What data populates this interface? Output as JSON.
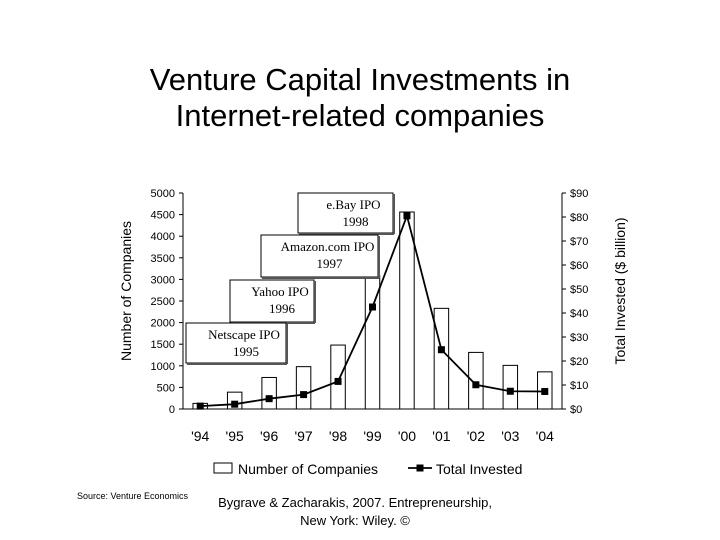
{
  "chart_data": {
    "type": "bar+line",
    "title": [
      "Venture Capital Investments in",
      "Internet-related companies"
    ],
    "xlabel": "",
    "ylabel_left": "Number of Companies",
    "ylabel_right": "Total Invested ($ billion)",
    "categories": [
      "'94",
      "'95",
      "'96",
      "'97",
      "'98",
      "'99",
      "'00",
      "'01",
      "'02",
      "'03",
      "'04"
    ],
    "left_axis": {
      "min": 0,
      "max": 5000,
      "ticks": [
        0,
        500,
        1000,
        1500,
        2000,
        2500,
        3000,
        3500,
        4000,
        4500,
        5000
      ]
    },
    "right_axis": {
      "min": 0,
      "max": 90,
      "ticks": [
        "$0",
        "$10",
        "$20",
        "$30",
        "$40",
        "$50",
        "$60",
        "$70",
        "$80",
        "$90"
      ]
    },
    "series": [
      {
        "name": "Number of Companies",
        "type": "bar",
        "axis": "left",
        "values": [
          130,
          390,
          730,
          980,
          1480,
          3080,
          4560,
          2330,
          1310,
          1010,
          860
        ]
      },
      {
        "name": "Total Invested",
        "type": "line",
        "axis": "right",
        "values": [
          1.2,
          2,
          4.3,
          6,
          11.5,
          42.5,
          80.5,
          24.7,
          10.1,
          7.4,
          7.3
        ]
      }
    ],
    "annotations": [
      {
        "text": [
          "e.Bay IPO",
          "1998"
        ]
      },
      {
        "text": [
          "Amazon.com IPO",
          "1997"
        ]
      },
      {
        "text": [
          "Yahoo IPO",
          "1996"
        ]
      },
      {
        "text": [
          "Netscape IPO",
          "1995"
        ]
      }
    ],
    "legend_position": "bottom"
  },
  "footer": {
    "source": "Source: Venture Economics",
    "credit_line1": "Bygrave & Zacharakis, 2007.  Entrepreneurship,",
    "credit_line2": "New York: Wiley.  ©"
  }
}
